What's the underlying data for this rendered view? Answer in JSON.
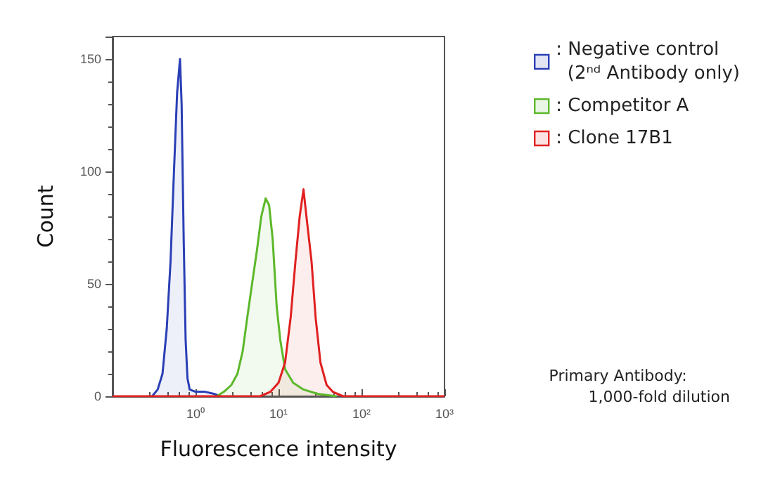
{
  "chart_data": {
    "type": "area",
    "xlabel": "Fluorescence intensity",
    "ylabel": "Count",
    "log": "x",
    "xlim": [
      0.1,
      1000
    ],
    "xticks": [
      {
        "value": 1,
        "label": "10⁰"
      },
      {
        "value": 10,
        "label": "10¹"
      },
      {
        "value": 100,
        "label": "10²"
      },
      {
        "value": 1000,
        "label": "10³"
      }
    ],
    "ylim": [
      0,
      160
    ],
    "yticks": [
      0,
      50,
      100,
      150
    ],
    "grid": false,
    "legend": "top right",
    "annotations": [
      "Primary Antibody:\n        1,000-fold dilution"
    ],
    "series": [
      {
        "name": ": Negative control\n(2ⁿᵈ Antibody only)",
        "color": "#2a3fb5",
        "x": [
          0.3,
          0.35,
          0.4,
          0.45,
          0.5,
          0.55,
          0.6,
          0.65,
          0.68,
          0.72,
          0.76,
          0.8,
          0.85,
          1.0,
          1.3,
          1.7,
          2.0
        ],
        "values": [
          0,
          3,
          10,
          30,
          60,
          100,
          135,
          150,
          130,
          70,
          25,
          8,
          3,
          2,
          2,
          1,
          0
        ]
      },
      {
        "name": ": Competitor A",
        "color": "#5cb82a",
        "x": [
          1.8,
          2.2,
          2.7,
          3.2,
          3.7,
          4.2,
          4.8,
          5.5,
          6.2,
          7.0,
          7.7,
          8.5,
          9.5,
          10.5,
          12,
          15,
          20,
          30,
          50
        ],
        "values": [
          0,
          2,
          5,
          10,
          20,
          35,
          50,
          65,
          80,
          88,
          85,
          70,
          40,
          25,
          12,
          6,
          3,
          1,
          0
        ]
      },
      {
        "name": ": Clone 17B1",
        "color": "#e02020",
        "x": [
          0.1,
          6,
          8,
          10,
          12,
          14,
          16,
          18,
          20,
          22,
          25,
          28,
          32,
          38,
          45,
          60,
          1000
        ],
        "values": [
          0,
          0,
          2,
          6,
          15,
          35,
          60,
          80,
          92,
          78,
          60,
          35,
          15,
          5,
          2,
          0,
          0
        ]
      }
    ]
  }
}
